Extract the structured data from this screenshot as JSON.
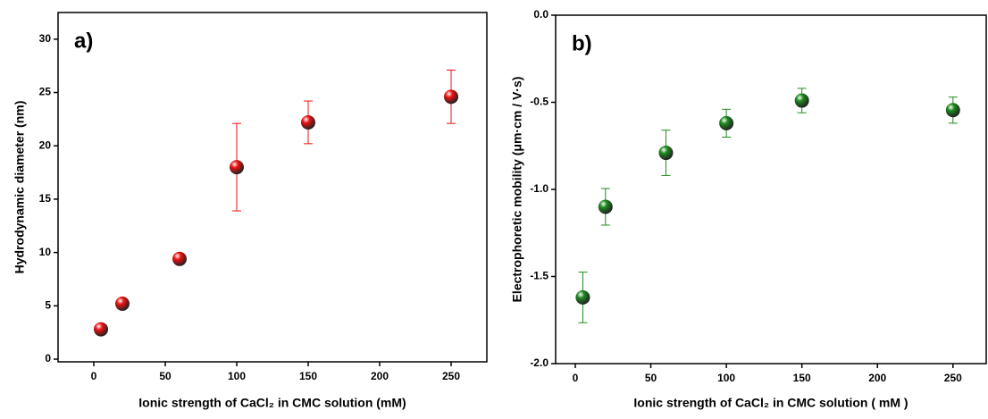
{
  "chart_data": [
    {
      "type": "scatter",
      "title": "a)",
      "x_label": "Ionic strength of CaCl₂ in CMC solution (mM)",
      "y_label": "Hydrodynamic diameter (nm)",
      "x": [
        5,
        20,
        60,
        100,
        150,
        250
      ],
      "series": [
        {
          "color": "#ee1111",
          "values": [
            2.8,
            5.2,
            9.4,
            18,
            22.2,
            24.6
          ],
          "errors": [
            0.2,
            0.2,
            0.2,
            4.1,
            2.0,
            2.5
          ]
        }
      ],
      "xlim": [
        -25,
        275
      ],
      "xticks": [
        0,
        50,
        100,
        150,
        200,
        250
      ],
      "ylim": [
        -0.25,
        32.5
      ],
      "yticks": [
        0,
        5,
        10,
        15,
        20,
        25,
        30
      ]
    },
    {
      "type": "scatter",
      "title": "b)",
      "x_label": "Ionic strength of CaCl₂ in CMC solution ( mM )",
      "y_label": "Electrophoretic mobility (μm·cm / V·s)",
      "x": [
        5,
        20,
        60,
        100,
        150,
        250
      ],
      "series": [
        {
          "color": "#1e8a1e",
          "values": [
            -1.62,
            -1.1,
            -0.79,
            -0.62,
            -0.49,
            -0.545
          ],
          "errors": [
            0.145,
            0.105,
            0.13,
            0.08,
            0.07,
            0.075
          ]
        }
      ],
      "xlim": [
        -13,
        272
      ],
      "xticks": [
        0,
        50,
        100,
        150,
        200,
        250
      ],
      "ylim": [
        -2,
        0
      ],
      "yticks": [
        {
          "value": -2,
          "label": "-2.0"
        },
        -1.5,
        {
          "value": -1,
          "label": "-1.0"
        },
        -0.5,
        {
          "value": 0,
          "label": "0.0"
        }
      ]
    }
  ]
}
